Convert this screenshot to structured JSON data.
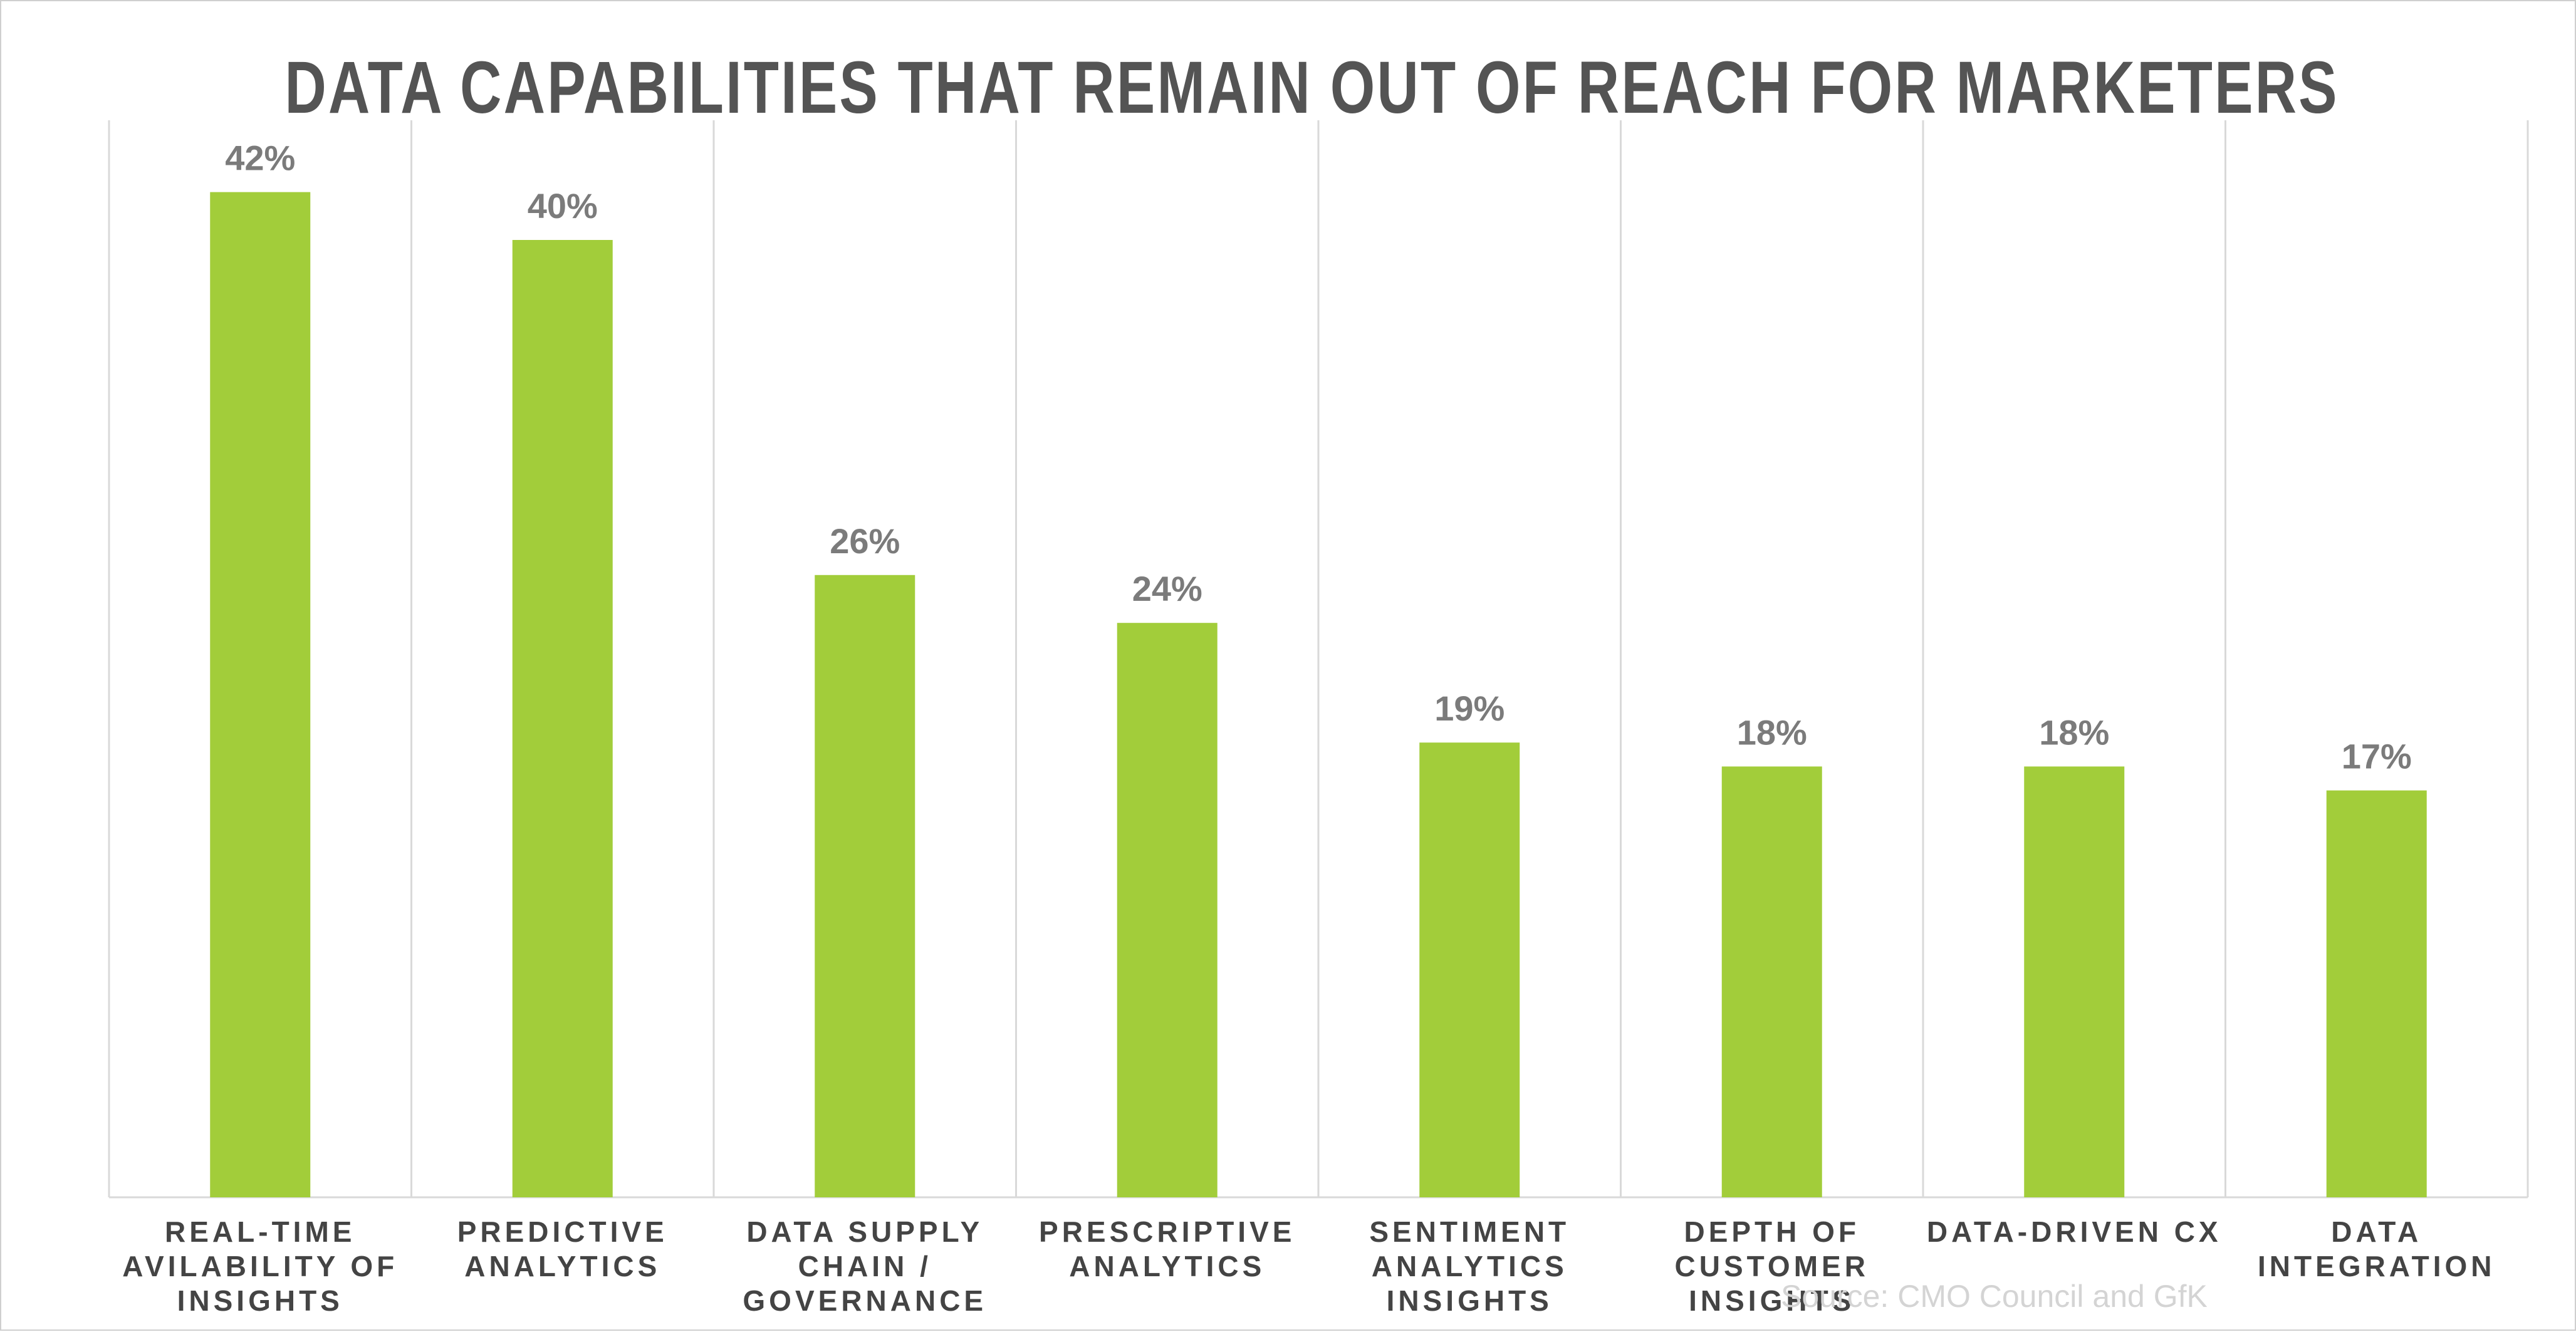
{
  "colors": {
    "bar": "#a2cd3a",
    "gridline": "#d9d9d9",
    "title": "#545454",
    "data_label": "#7b7b7b",
    "axis_label": "#444444",
    "source": "#d4d4d4"
  },
  "chart_data": {
    "type": "bar",
    "title": "DATA CAPABILITIES THAT REMAIN OUT OF REACH FOR MARKETERS",
    "xlabel": "",
    "ylabel": "",
    "ylim": [
      0,
      45
    ],
    "grid": "vertical category separators",
    "legend": "none",
    "categories": [
      [
        "REAL-TIME",
        "AVILABILITY OF",
        "INSIGHTS"
      ],
      [
        "PREDICTIVE",
        "ANALYTICS"
      ],
      [
        "DATA SUPPLY",
        "CHAIN /",
        "GOVERNANCE"
      ],
      [
        "PRESCRIPTIVE",
        "ANALYTICS"
      ],
      [
        "SENTIMENT",
        "ANALYTICS",
        "INSIGHTS"
      ],
      [
        "DEPTH OF",
        "CUSTOMER",
        "INSIGHTS"
      ],
      [
        "DATA-DRIVEN CX"
      ],
      [
        "DATA",
        "INTEGRATION"
      ]
    ],
    "values": [
      42,
      40,
      26,
      24,
      19,
      18,
      18,
      17
    ],
    "value_labels": [
      "42%",
      "40%",
      "26%",
      "24%",
      "19%",
      "18%",
      "18%",
      "17%"
    ]
  },
  "source": "Source: CMO Council and GfK"
}
